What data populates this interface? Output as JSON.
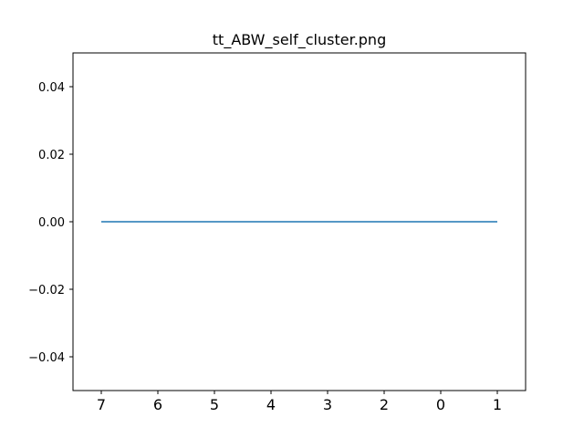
{
  "chart_data": {
    "type": "line",
    "title": "tt_ABW_self_cluster.png",
    "xlabel": "",
    "ylabel": "",
    "categories": [
      "7",
      "6",
      "5",
      "4",
      "3",
      "2",
      "0",
      "1"
    ],
    "series": [
      {
        "values": [
          0,
          0,
          0,
          0,
          0,
          0,
          0,
          0
        ]
      }
    ],
    "ylim": [
      -0.05,
      0.05
    ],
    "y_ticks": [
      0.04,
      0.02,
      0.0,
      -0.02,
      -0.04
    ],
    "y_tick_labels": [
      "0.04",
      "0.02",
      "0.00",
      "−0.02",
      "−0.04"
    ],
    "grid": false,
    "colors": {
      "line": "#1f77b4",
      "axes": "#000000",
      "background": "#ffffff"
    }
  }
}
